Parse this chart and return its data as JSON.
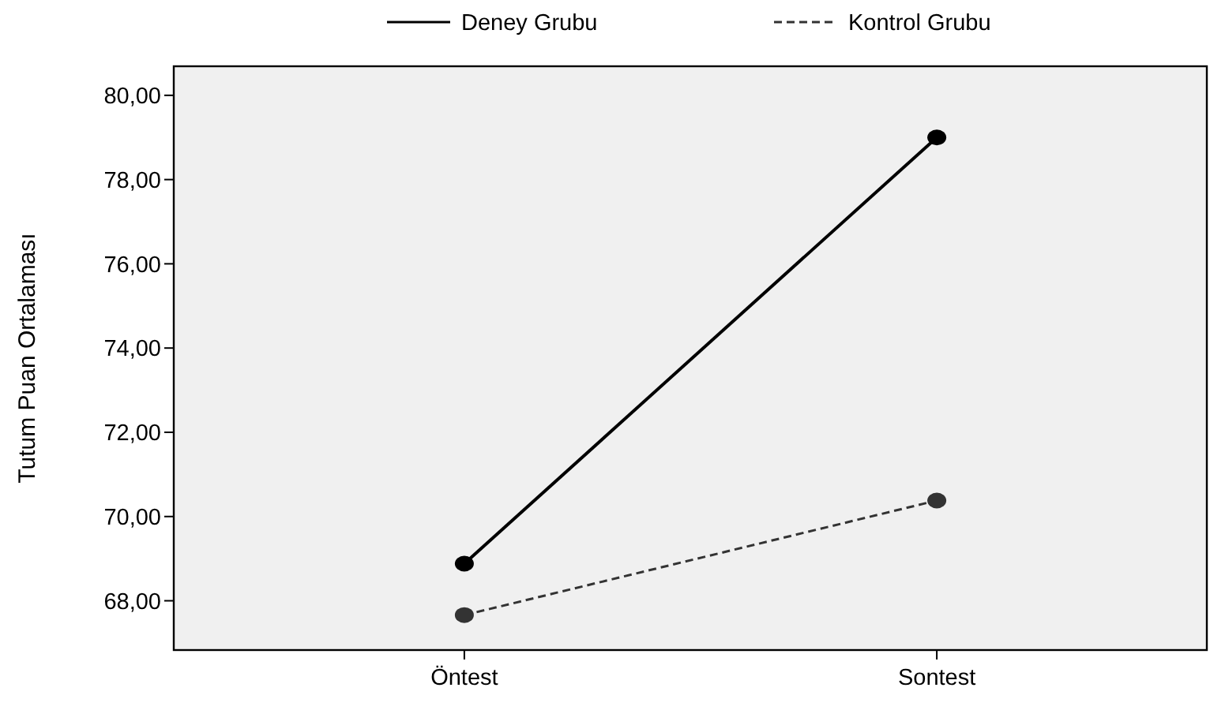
{
  "chart_data": {
    "type": "line",
    "ylabel": "Tutum Puan Ortalaması",
    "categories": [
      "Öntest",
      "Sontest"
    ],
    "series": [
      {
        "name": "Deney Grubu",
        "color": "#000000",
        "line_style": "solid",
        "values": [
          68.88,
          79.0
        ]
      },
      {
        "name": "Kontrol Grubu",
        "color": "#333333",
        "line_style": "dashed",
        "values": [
          67.66,
          70.38
        ]
      }
    ],
    "ylim": [
      66.83,
      80.69
    ],
    "yticks": [
      {
        "value": 68,
        "label": "68,00"
      },
      {
        "value": 70,
        "label": "70,00"
      },
      {
        "value": 72,
        "label": "72,00"
      },
      {
        "value": 74,
        "label": "74,00"
      },
      {
        "value": 76,
        "label": "76,00"
      },
      {
        "value": 78,
        "label": "78,00"
      },
      {
        "value": 80,
        "label": "80,00"
      }
    ],
    "marker": "circle",
    "legend": "top",
    "grid": false
  }
}
